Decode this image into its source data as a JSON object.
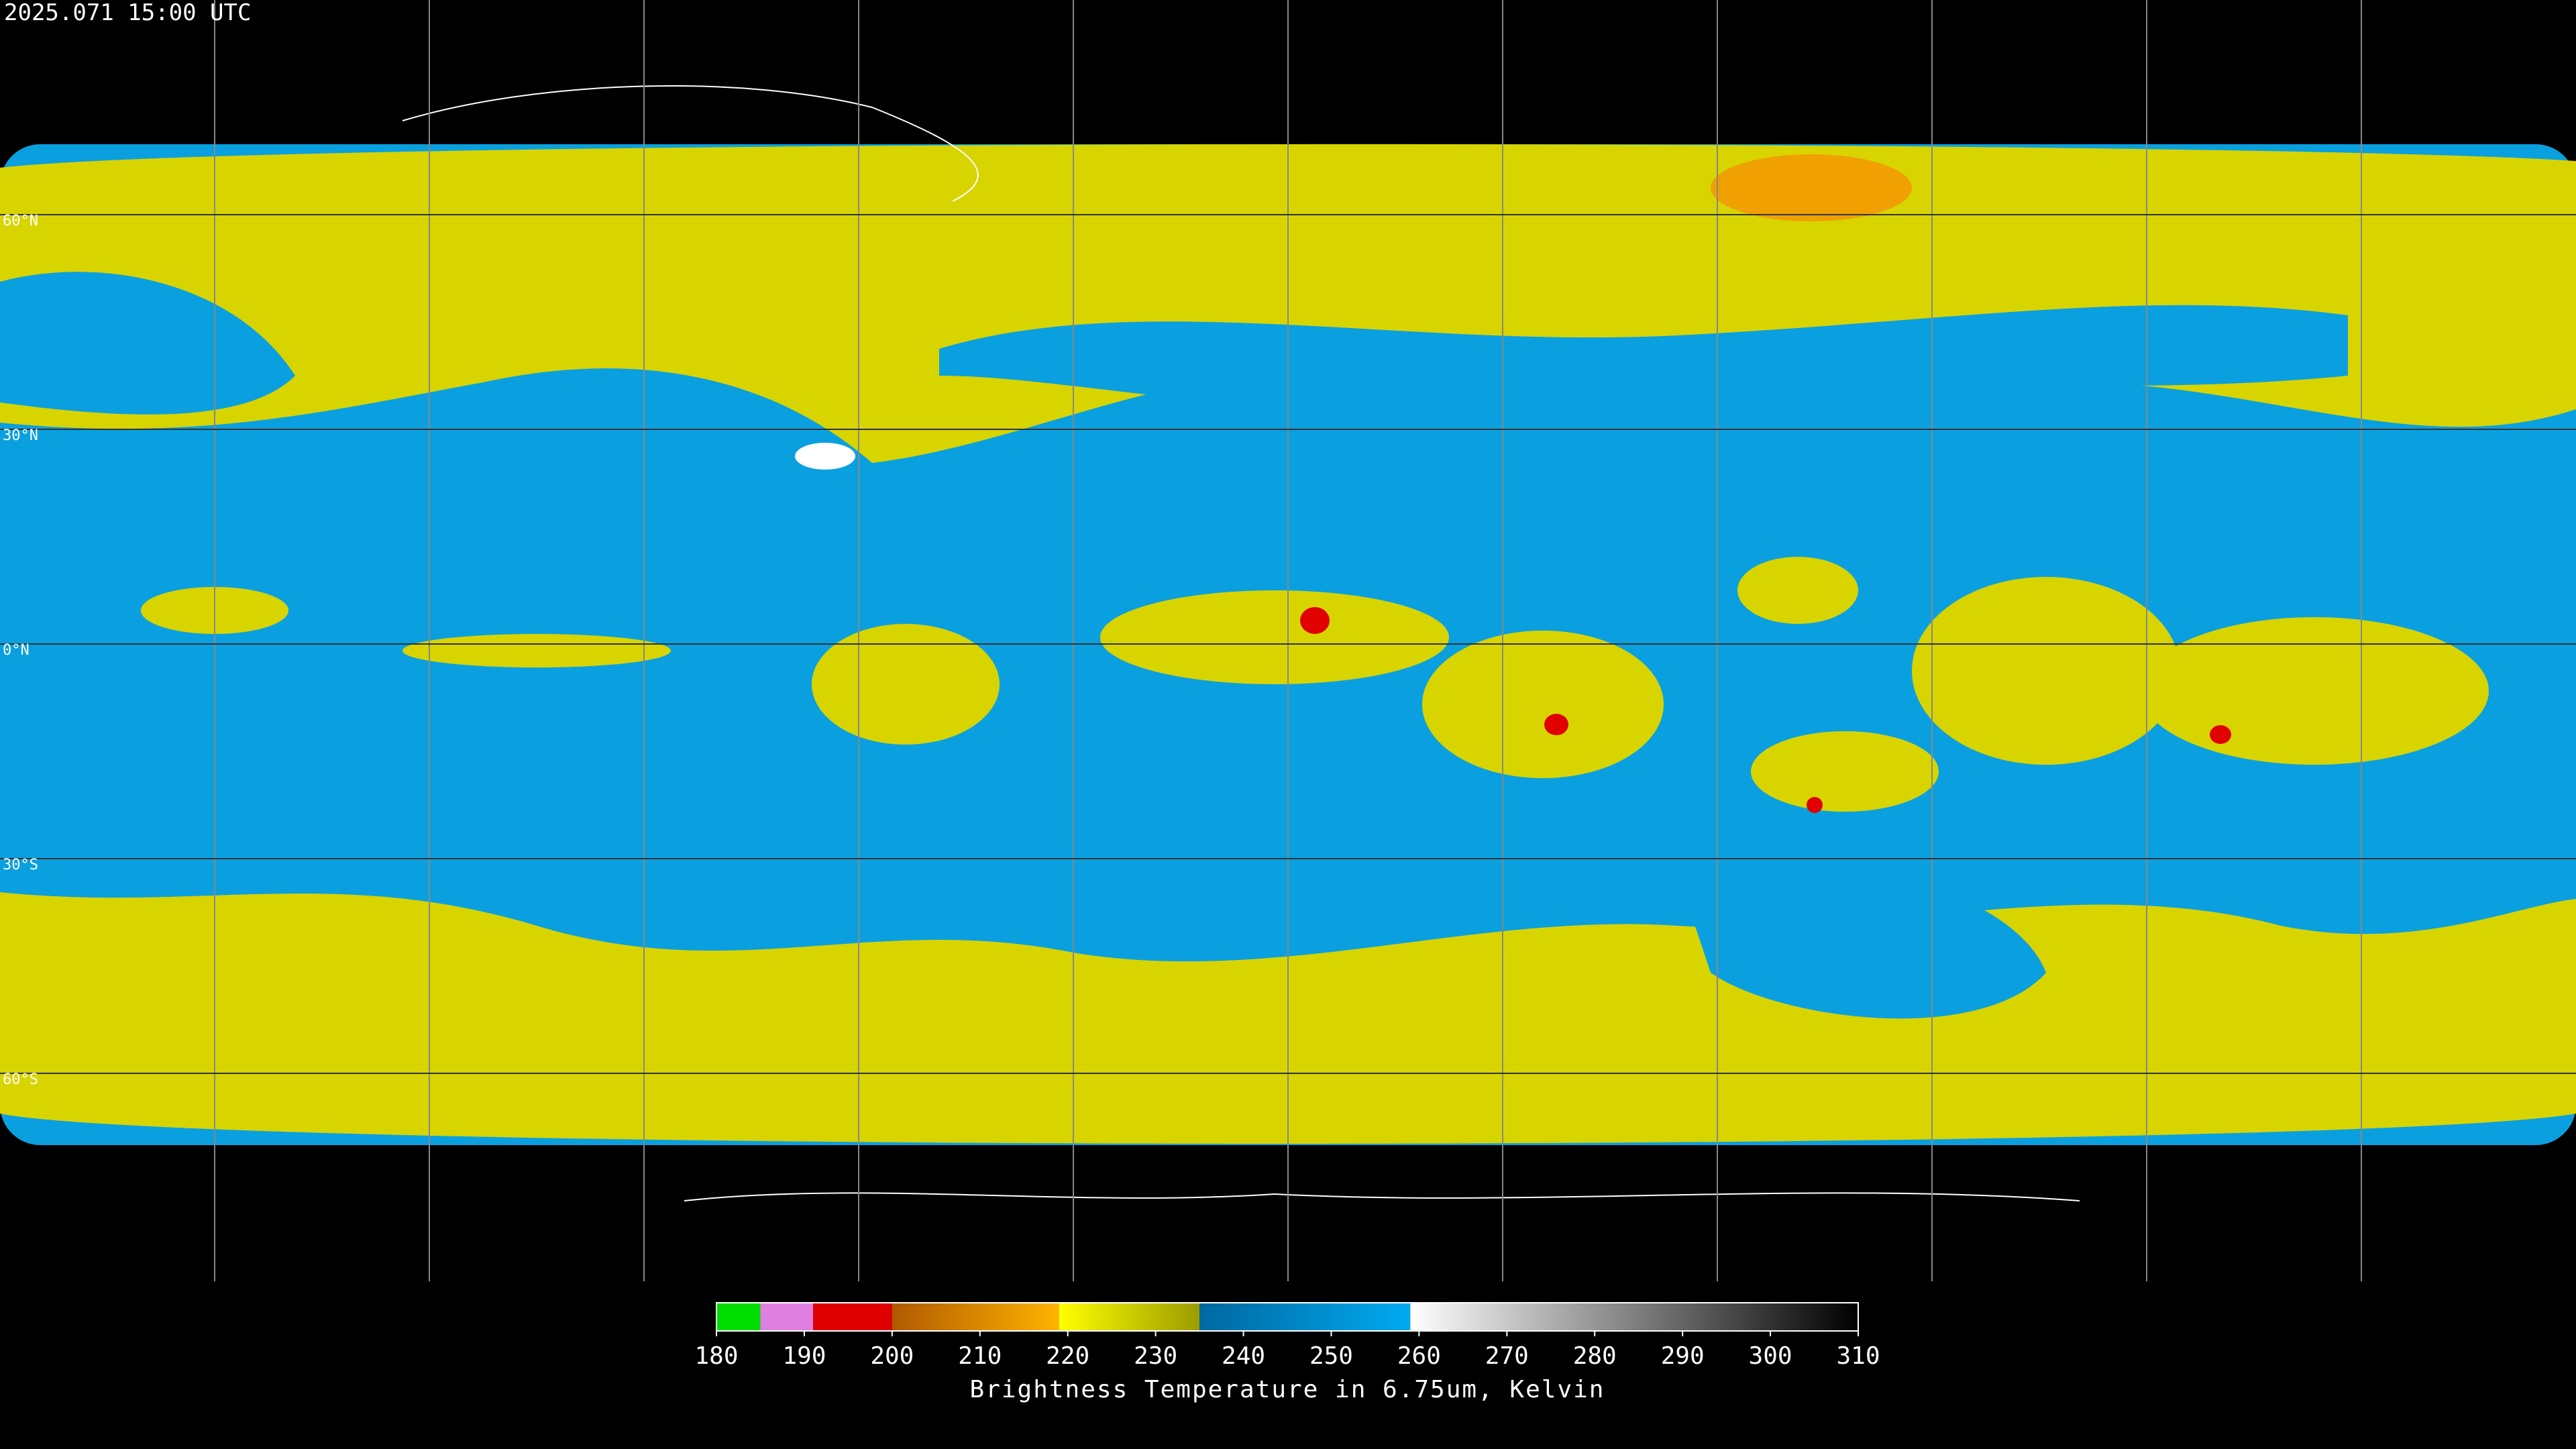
{
  "header": {
    "title": "2025.071 15:00 UTC"
  },
  "map": {
    "lat_labels": [
      "60°N",
      "30°N",
      "0°N",
      "30°S",
      "60°S"
    ]
  },
  "colorbar": {
    "range": [
      180,
      310
    ],
    "ticks": [
      180,
      190,
      200,
      210,
      220,
      230,
      240,
      250,
      260,
      270,
      280,
      290,
      300,
      310
    ],
    "label": "Brightness Temperature in 6.75um, Kelvin",
    "segments": [
      {
        "from": 180,
        "to": 185,
        "from_color": "#00dd00",
        "to_color": "#00dd00"
      },
      {
        "from": 185,
        "to": 191,
        "from_color": "#e080e0",
        "to_color": "#e080e0"
      },
      {
        "from": 191,
        "to": 200,
        "from_color": "#e00000",
        "to_color": "#e00000"
      },
      {
        "from": 200,
        "to": 219,
        "from_color": "#b05a00",
        "to_color": "#ffb400"
      },
      {
        "from": 219,
        "to": 235,
        "from_color": "#ffff00",
        "to_color": "#9c9c00"
      },
      {
        "from": 235,
        "to": 259,
        "from_color": "#0068a0",
        "to_color": "#00aaf0"
      },
      {
        "from": 259,
        "to": 310,
        "from_color": "#ffffff",
        "to_color": "#000000"
      }
    ]
  }
}
